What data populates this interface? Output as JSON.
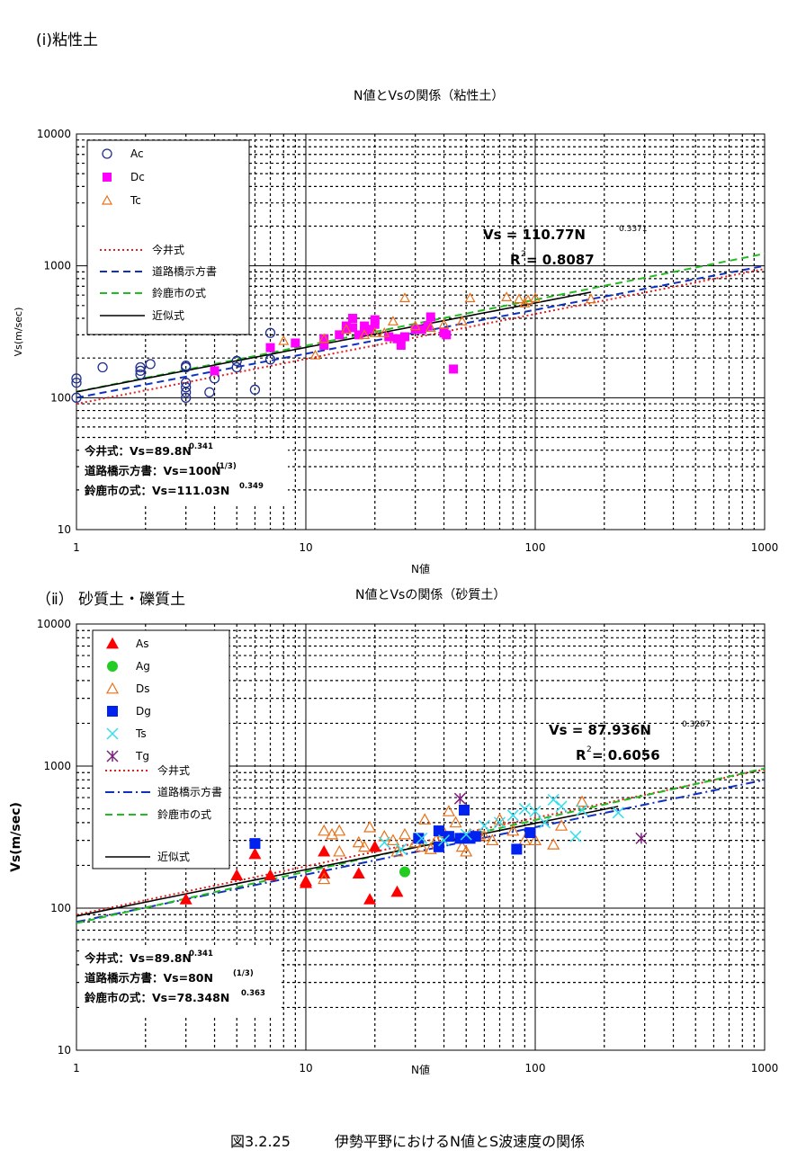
{
  "page": {
    "section1_title": "(i)粘性土",
    "section2_title": "（ⅱ） 砂質土・礫質土",
    "caption_num": "図3.2.25",
    "caption_text": "伊勢平野におけるN値とS波速度の関係"
  },
  "chart_data": [
    {
      "type": "scatter",
      "title": "N値とVsの関係（粘性土）",
      "xlabel": "N値",
      "ylabel": "Vs(m/sec)",
      "xscale": "log",
      "yscale": "log",
      "xlim": [
        1,
        1000
      ],
      "ylim": [
        10,
        10000
      ],
      "x_ticks": [
        "1",
        "10",
        "100",
        "1000"
      ],
      "y_ticks": [
        "10",
        "100",
        "1000",
        "10000"
      ],
      "grid": true,
      "legend_position": "top-left",
      "fit_label_main": "Vs = 110.77N",
      "fit_label_exp": "0.3371",
      "r2_label_main": "R",
      "r2_label_sup": "2",
      "r2_label_value": " = 0.8087",
      "formulas": [
        {
          "main": "今井式：Vs=89.8N",
          "exp": "0.341"
        },
        {
          "main": "道路橋示方書：Vs=100N",
          "exp": "(1/3)"
        },
        {
          "main": "鈴鹿市の式：Vs=111.03N",
          "exp": "0.349"
        }
      ],
      "series": [
        {
          "name": "Ac",
          "marker": "circle-open",
          "color": "#1f2f8f",
          "points": [
            [
              1,
              100
            ],
            [
              1,
              130
            ],
            [
              1,
              140
            ],
            [
              1.3,
              170
            ],
            [
              1.9,
              150
            ],
            [
              1.9,
              160
            ],
            [
              1.9,
              170
            ],
            [
              2.1,
              180
            ],
            [
              3,
              100
            ],
            [
              3,
              110
            ],
            [
              3,
              120
            ],
            [
              3,
              130
            ],
            [
              3,
              170
            ],
            [
              3,
              175
            ],
            [
              3.8,
              110
            ],
            [
              4,
              140
            ],
            [
              5,
              170
            ],
            [
              5,
              190
            ],
            [
              6,
              115
            ],
            [
              7,
              195
            ],
            [
              7,
              310
            ]
          ]
        },
        {
          "name": "Dc",
          "marker": "square-filled",
          "color": "#ff00ff",
          "points": [
            [
              4,
              160
            ],
            [
              7,
              240
            ],
            [
              9,
              260
            ],
            [
              12,
              250
            ],
            [
              12,
              280
            ],
            [
              14,
              300
            ],
            [
              15,
              330
            ],
            [
              15,
              350
            ],
            [
              16,
              340
            ],
            [
              16,
              400
            ],
            [
              17,
              300
            ],
            [
              18,
              320
            ],
            [
              18,
              350
            ],
            [
              19,
              330
            ],
            [
              20,
              360
            ],
            [
              20,
              390
            ],
            [
              23,
              290
            ],
            [
              25,
              280
            ],
            [
              26,
              250
            ],
            [
              27,
              290
            ],
            [
              30,
              330
            ],
            [
              32,
              330
            ],
            [
              34,
              350
            ],
            [
              35,
              410
            ],
            [
              40,
              310
            ],
            [
              41,
              300
            ],
            [
              44,
              165
            ]
          ]
        },
        {
          "name": "Tc",
          "marker": "triangle-open",
          "color": "#e8701a",
          "points": [
            [
              8,
              270
            ],
            [
              12,
              280
            ],
            [
              11,
              210
            ],
            [
              15,
              330
            ],
            [
              18,
              300
            ],
            [
              20,
              310
            ],
            [
              22,
              310
            ],
            [
              24,
              380
            ],
            [
              27,
              570
            ],
            [
              30,
              350
            ],
            [
              35,
              340
            ],
            [
              40,
              360
            ],
            [
              48,
              380
            ],
            [
              52,
              570
            ],
            [
              75,
              580
            ],
            [
              85,
              560
            ],
            [
              90,
              520
            ],
            [
              93,
              550
            ],
            [
              100,
              570
            ],
            [
              175,
              560
            ]
          ]
        }
      ],
      "curves": [
        {
          "name": "今井式",
          "coef": 89.8,
          "exp": 0.341,
          "color": "#e02020",
          "style": "dotted"
        },
        {
          "name": "道路橋示方書",
          "coef": 100,
          "exp": 0.3333,
          "color": "#1030c0",
          "style": "dashed"
        },
        {
          "name": "鈴鹿市の式",
          "coef": 111.03,
          "exp": 0.349,
          "color": "#22bb22",
          "style": "dashed"
        },
        {
          "name": "近似式",
          "coef": 110.77,
          "exp": 0.3371,
          "color": "#000000",
          "style": "solid",
          "xmax": 175
        }
      ]
    },
    {
      "type": "scatter",
      "title": "N値とVsの関係（砂質土）",
      "xlabel": "N値",
      "ylabel": "Vs(m/sec)",
      "xscale": "log",
      "yscale": "log",
      "xlim": [
        1,
        1000
      ],
      "ylim": [
        10,
        10000
      ],
      "x_ticks": [
        "1",
        "10",
        "100",
        "1000"
      ],
      "y_ticks": [
        "10",
        "100",
        "1000",
        "10000"
      ],
      "grid": true,
      "legend_position": "top-left",
      "fit_label_main": "Vs = 87.936N",
      "fit_label_exp": "0.3267",
      "r2_label_main": "R",
      "r2_label_sup": "2",
      "r2_label_value": " = 0.6056",
      "formulas": [
        {
          "main": "今井式：Vs=89.8N",
          "exp": "0.341"
        },
        {
          "main": "道路橋示方書：Vs=80N",
          "exp": "(1/3)"
        },
        {
          "main": "鈴鹿市の式：Vs=78.348N",
          "exp": "0.363"
        }
      ],
      "series": [
        {
          "name": "As",
          "marker": "triangle-filled",
          "color": "#ff0000",
          "points": [
            [
              3,
              115
            ],
            [
              5,
              170
            ],
            [
              6,
              240
            ],
            [
              7,
              170
            ],
            [
              10,
              150
            ],
            [
              10,
              155
            ],
            [
              12,
              175
            ],
            [
              12,
              250
            ],
            [
              17,
              175
            ],
            [
              19,
              115
            ],
            [
              20,
              270
            ],
            [
              25,
              130
            ]
          ]
        },
        {
          "name": "Ag",
          "marker": "circle-filled",
          "color": "#22cc22",
          "points": [
            [
              27,
              180
            ]
          ]
        },
        {
          "name": "Ds",
          "marker": "triangle-open",
          "color": "#e8701a",
          "points": [
            [
              12,
              160
            ],
            [
              12,
              350
            ],
            [
              13,
              330
            ],
            [
              14,
              250
            ],
            [
              14,
              350
            ],
            [
              17,
              290
            ],
            [
              18,
              270
            ],
            [
              19,
              370
            ],
            [
              22,
              320
            ],
            [
              24,
              300
            ],
            [
              25,
              250
            ],
            [
              27,
              330
            ],
            [
              30,
              290
            ],
            [
              32,
              270
            ],
            [
              33,
              420
            ],
            [
              35,
              260
            ],
            [
              37,
              300
            ],
            [
              40,
              340
            ],
            [
              42,
              480
            ],
            [
              45,
              400
            ],
            [
              48,
              270
            ],
            [
              50,
              250
            ],
            [
              52,
              330
            ],
            [
              57,
              330
            ],
            [
              60,
              320
            ],
            [
              65,
              300
            ],
            [
              70,
              420
            ],
            [
              80,
              350
            ],
            [
              90,
              300
            ],
            [
              100,
              300
            ],
            [
              120,
              280
            ],
            [
              130,
              380
            ],
            [
              160,
              560
            ]
          ]
        },
        {
          "name": "Dg",
          "marker": "square-filled",
          "color": "#0022ee",
          "points": [
            [
              6,
              285
            ],
            [
              31,
              310
            ],
            [
              38,
              270
            ],
            [
              38,
              350
            ],
            [
              42,
              320
            ],
            [
              47,
              310
            ],
            [
              49,
              490
            ],
            [
              52,
              310
            ],
            [
              55,
              320
            ],
            [
              83,
              260
            ],
            [
              95,
              340
            ]
          ]
        },
        {
          "name": "Ts",
          "marker": "x",
          "color": "#33ddee",
          "points": [
            [
              22,
              290
            ],
            [
              26,
              260
            ],
            [
              32,
              310
            ],
            [
              40,
              300
            ],
            [
              50,
              330
            ],
            [
              60,
              380
            ],
            [
              70,
              400
            ],
            [
              80,
              450
            ],
            [
              90,
              500
            ],
            [
              100,
              480
            ],
            [
              110,
              400
            ],
            [
              120,
              580
            ],
            [
              130,
              520
            ],
            [
              150,
              320
            ],
            [
              160,
              490
            ],
            [
              230,
              470
            ]
          ]
        },
        {
          "name": "Tg",
          "marker": "asterisk",
          "color": "#7a1f7a",
          "points": [
            [
              47,
              590
            ],
            [
              290,
              310
            ]
          ]
        }
      ],
      "curves": [
        {
          "name": "今井式",
          "coef": 89.8,
          "exp": 0.341,
          "color": "#e02020",
          "style": "dotted"
        },
        {
          "name": "道路橋示方書",
          "coef": 80,
          "exp": 0.3333,
          "color": "#1030c0",
          "style": "dashdot"
        },
        {
          "name": "鈴鹿市の式",
          "coef": 78.348,
          "exp": 0.363,
          "color": "#22bb22",
          "style": "dashed"
        },
        {
          "name": "近似式",
          "coef": 87.936,
          "exp": 0.3267,
          "color": "#000000",
          "style": "solid",
          "xmax": 230
        }
      ]
    }
  ]
}
